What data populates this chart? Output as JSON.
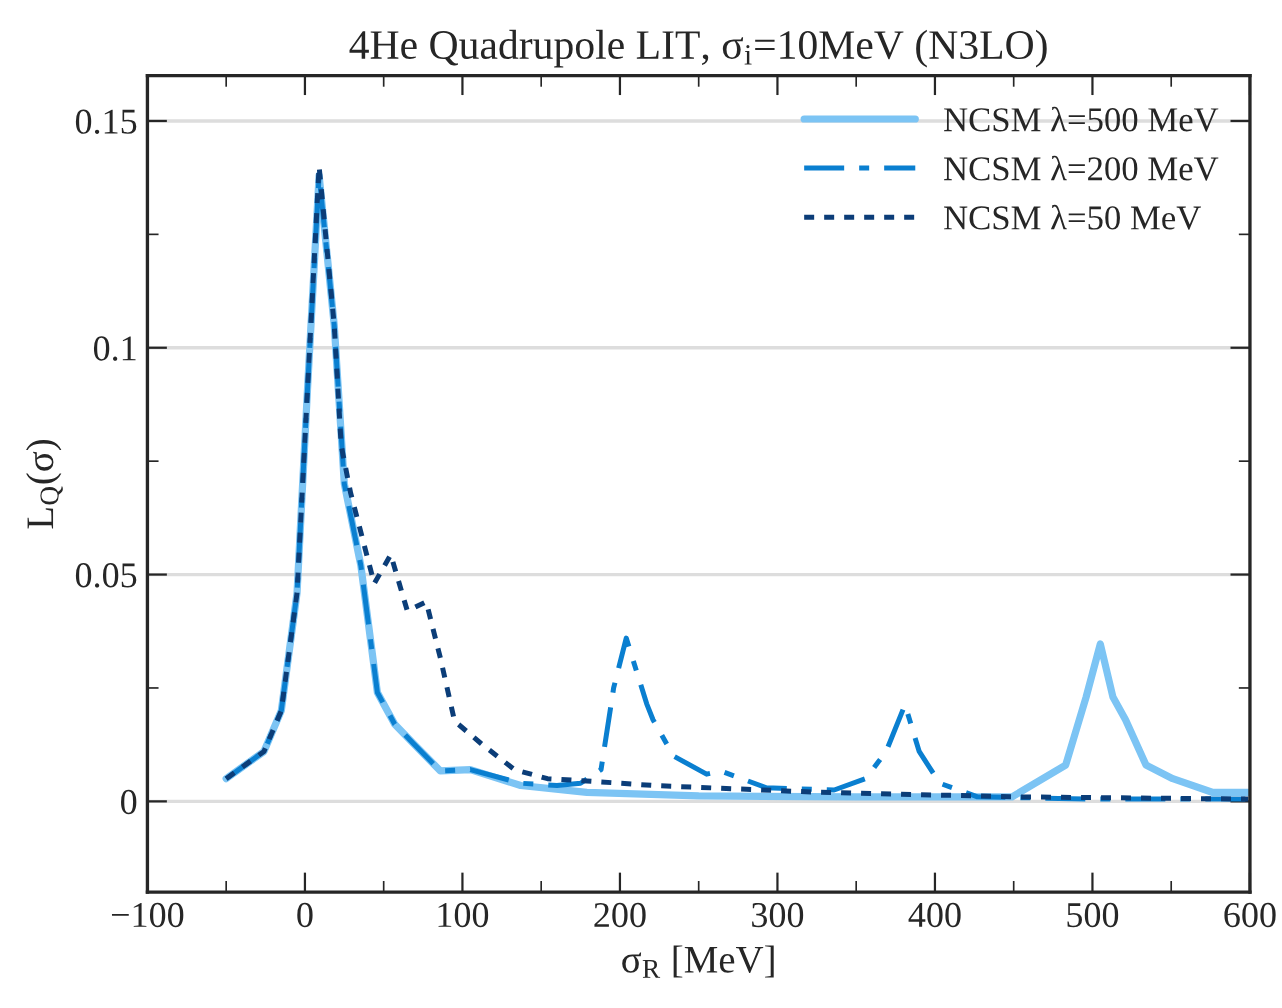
{
  "chart_data": {
    "type": "line",
    "title": "4He Quadrupole LIT, σ$_{i}$=10MeV (N3LO)",
    "xlabel": "σ$_{R}$ [MeV]",
    "ylabel": "L$_{Q}$(σ)",
    "xlim": [
      -100,
      600
    ],
    "xticks": [
      {
        "value": -100,
        "label": "−100"
      },
      {
        "value": -50,
        "label": null
      },
      0,
      {
        "value": 50,
        "label": null
      },
      100,
      {
        "value": 150,
        "label": null
      },
      200,
      {
        "value": 250,
        "label": null
      },
      300,
      {
        "value": 350,
        "label": null
      },
      400,
      {
        "value": 450,
        "label": null
      },
      500,
      {
        "value": 550,
        "label": null
      },
      600
    ],
    "ylim": [
      -0.02,
      0.16
    ],
    "yticks": [
      0,
      {
        "value": 0.025,
        "label": null
      },
      0.05,
      {
        "value": 0.075,
        "label": null
      },
      {
        "value": 0.1,
        "label": "0.1"
      },
      {
        "value": 0.125,
        "label": null
      },
      0.15
    ],
    "grid": "y",
    "legend": "top right",
    "marker": "none",
    "series": [
      {
        "name": "NCSM λ=500 MeV",
        "color": "#7cc4f4",
        "line_style": "solid",
        "x": [
          -50,
          -26,
          -15,
          -5,
          1.5,
          9,
          18.6,
          25,
          35.5,
          46,
          57,
          69,
          86,
          105,
          137,
          179,
          250,
          350,
          449,
          483,
          496,
          505,
          513,
          521,
          534,
          551,
          576,
          599
        ],
        "values": [
          0.005,
          0.011,
          0.02,
          0.046,
          0.09,
          0.138,
          0.105,
          0.07,
          0.052,
          0.024,
          0.017,
          0.0127,
          0.0067,
          0.007,
          0.0035,
          0.002,
          0.0012,
          0.001,
          0.001,
          0.008,
          0.023,
          0.0347,
          0.023,
          0.018,
          0.008,
          0.005,
          0.002,
          0.002
        ]
      },
      {
        "name": "NCSM λ=200 MeV",
        "color": "#0a7fd0",
        "line_style": "dashdot",
        "x": [
          -50,
          -26,
          -15,
          -5,
          1.5,
          9,
          18.6,
          25,
          35.5,
          46,
          57,
          69,
          86,
          105,
          137,
          160,
          175,
          188,
          196,
          204,
          217,
          221,
          234,
          255,
          264,
          293,
          336,
          356,
          369,
          381,
          390,
          403,
          427,
          500,
          599
        ],
        "values": [
          0.005,
          0.011,
          0.02,
          0.046,
          0.09,
          0.138,
          0.105,
          0.07,
          0.052,
          0.024,
          0.017,
          0.0127,
          0.0067,
          0.007,
          0.004,
          0.0035,
          0.004,
          0.007,
          0.025,
          0.036,
          0.0215,
          0.018,
          0.01,
          0.006,
          0.0067,
          0.003,
          0.0025,
          0.005,
          0.011,
          0.0213,
          0.011,
          0.004,
          0.001,
          0.0005,
          0.0005
        ]
      },
      {
        "name": "NCSM λ=50 MeV",
        "color": "#0b3d78",
        "line_style": "dotted",
        "x": [
          -50,
          -26,
          -15,
          -5,
          1.5,
          9,
          18.6,
          23,
          29,
          44,
          54.5,
          65,
          77,
          86,
          95,
          112,
          133,
          154,
          179,
          221,
          326,
          450,
          599
        ],
        "values": [
          0.005,
          0.011,
          0.02,
          0.046,
          0.09,
          0.14,
          0.105,
          0.0785,
          0.068,
          0.048,
          0.0544,
          0.042,
          0.044,
          0.0316,
          0.0177,
          0.0127,
          0.007,
          0.005,
          0.0045,
          0.0035,
          0.002,
          0.001,
          0.0005
        ]
      }
    ]
  }
}
